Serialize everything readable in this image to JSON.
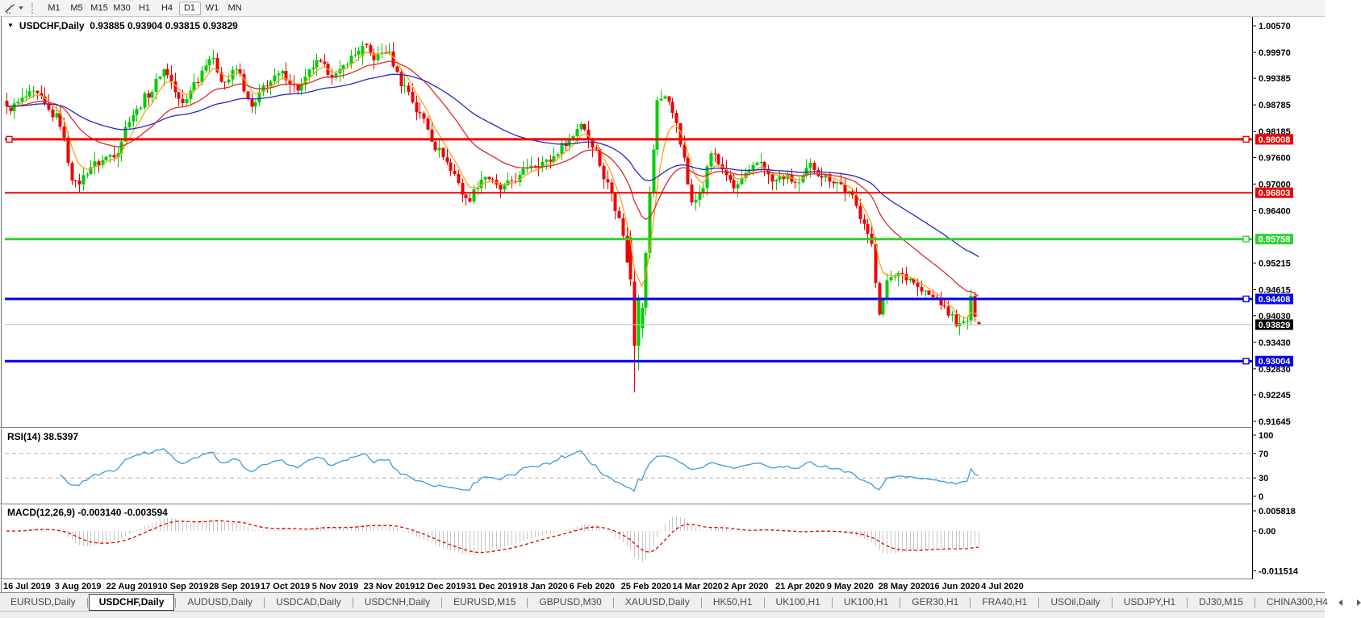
{
  "toolbar": {
    "timeframes": [
      "M1",
      "M5",
      "M15",
      "M30",
      "H1",
      "H4",
      "D1",
      "W1",
      "MN"
    ],
    "active_timeframe": "D1"
  },
  "chart": {
    "symbol_label": "USDCHF,Daily",
    "ohlc_text": "0.93885 0.93904 0.93815 0.93829",
    "dropdown_glyph": "▼"
  },
  "price_axis": {
    "ticks": [
      "1.00570",
      "0.99970",
      "0.99385",
      "0.98785",
      "0.98185",
      "0.97600",
      "0.97000",
      "0.96400",
      "0.95215",
      "0.94615",
      "0.94030",
      "0.93430",
      "0.92830",
      "0.92245",
      "0.91645"
    ]
  },
  "levels": [
    {
      "price": 0.98008,
      "label": "0.98008",
      "color": "#F00000",
      "line_width": 3,
      "handles": [
        "left",
        "right"
      ]
    },
    {
      "price": 0.96803,
      "label": "0.96803",
      "color": "#F00000",
      "line_width": 2,
      "handles": []
    },
    {
      "price": 0.95758,
      "label": "0.95758",
      "color": "#2FD32F",
      "line_width": 3,
      "handles": [
        "right"
      ]
    },
    {
      "price": 0.94408,
      "label": "0.94408",
      "color": "#0000F0",
      "line_width": 3,
      "handles": [
        "right"
      ]
    },
    {
      "price": 0.93004,
      "label": "0.93004",
      "color": "#0000F0",
      "line_width": 3,
      "handles": [
        "right"
      ]
    }
  ],
  "bid_line": {
    "price": 0.93829,
    "label": "0.93829",
    "line_color": "#C0C0C0",
    "label_bg": "#000000"
  },
  "rsi": {
    "label": "RSI(14) 38.5397",
    "period": 14,
    "value": 38.5397,
    "ticks": [
      "100",
      "70",
      "30",
      "0"
    ],
    "level_lines": [
      70,
      30
    ],
    "line_color": "#3D9AE0"
  },
  "macd": {
    "label": "MACD(12,26,9) -0.003140 -0.003594",
    "value": -0.00314,
    "signal_value": -0.003594,
    "ticks": [
      "0.005818",
      "0.00",
      "-0.011514"
    ],
    "histogram_color": "#C6C6C6",
    "signal_color": "#E00000"
  },
  "date_axis": [
    "16 Jul 2019",
    "3 Aug 2019",
    "22 Aug 2019",
    "10 Sep 2019",
    "28 Sep 2019",
    "17 Oct 2019",
    "5 Nov 2019",
    "23 Nov 2019",
    "12 Dec 2019",
    "31 Dec 2019",
    "18 Jan 2020",
    "6 Feb 2020",
    "25 Feb 2020",
    "14 Mar 2020",
    "2 Apr 2020",
    "21 Apr 2020",
    "9 May 2020",
    "28 May 2020",
    "16 Jun 2020",
    "4 Jul 2020"
  ],
  "tabs": {
    "items": [
      "EURUSD,Daily",
      "USDCHF,Daily",
      "AUDUSD,Daily",
      "USDCAD,Daily",
      "USDCNH,Daily",
      "EURUSD,M15",
      "GBPUSD,M30",
      "XAUUSD,Daily",
      "HK50,H1",
      "UK100,H1",
      "UK100,H1",
      "GER30,H1",
      "FRA40,H1",
      "USOil,Daily",
      "USDJPY,H1",
      "DJ30,M15",
      "CHINA300,H4"
    ],
    "active": "USDCHF,Daily"
  },
  "colors": {
    "candle_up": "#00CE00",
    "candle_down": "#F00000",
    "ma_fast": "#FFA018",
    "ma_mid": "#E02828",
    "ma_slow": "#2828C8",
    "axis_text": "#000000",
    "pane_bg": "#FFFFFF"
  },
  "chart_data": {
    "type": "candlestick",
    "symbol": "USDCHF",
    "timeframe": "Daily",
    "current_ohlc": {
      "open": 0.93885,
      "high": 0.93904,
      "low": 0.93815,
      "close": 0.93829
    },
    "y_axis": {
      "max": 1.0057,
      "min": 0.91645
    },
    "num_candles": 255,
    "noise_amplitude": 0.0018,
    "price_path_anchors": [
      [
        0,
        0.987
      ],
      [
        7,
        0.9903
      ],
      [
        13,
        0.9852
      ],
      [
        18,
        0.97
      ],
      [
        23,
        0.9745
      ],
      [
        28,
        0.9768
      ],
      [
        33,
        0.9858
      ],
      [
        37,
        0.9903
      ],
      [
        41,
        0.9958
      ],
      [
        46,
        0.988
      ],
      [
        49,
        0.9928
      ],
      [
        53,
        0.9985
      ],
      [
        57,
        0.993
      ],
      [
        60,
        0.9958
      ],
      [
        64,
        0.9872
      ],
      [
        68,
        0.9928
      ],
      [
        72,
        0.9948
      ],
      [
        76,
        0.9915
      ],
      [
        81,
        0.9972
      ],
      [
        86,
        0.9945
      ],
      [
        90,
        0.9985
      ],
      [
        93,
        1.0012
      ],
      [
        96,
        0.9985
      ],
      [
        99,
        1.0
      ],
      [
        104,
        0.992
      ],
      [
        108,
        0.9855
      ],
      [
        113,
        0.9775
      ],
      [
        117,
        0.9722
      ],
      [
        120,
        0.9663
      ],
      [
        125,
        0.9718
      ],
      [
        129,
        0.9688
      ],
      [
        133,
        0.971
      ],
      [
        137,
        0.9745
      ],
      [
        141,
        0.975
      ],
      [
        147,
        0.9798
      ],
      [
        150,
        0.9838
      ],
      [
        153,
        0.979
      ],
      [
        157,
        0.97
      ],
      [
        160,
        0.963
      ],
      [
        162,
        0.9528
      ],
      [
        164,
        0.9335
      ],
      [
        166,
        0.9428
      ],
      [
        168,
        0.9675
      ],
      [
        170,
        0.9885
      ],
      [
        172,
        0.9902
      ],
      [
        175,
        0.984
      ],
      [
        177,
        0.9752
      ],
      [
        179,
        0.9652
      ],
      [
        182,
        0.97
      ],
      [
        184,
        0.9772
      ],
      [
        187,
        0.9735
      ],
      [
        190,
        0.969
      ],
      [
        193,
        0.972
      ],
      [
        197,
        0.9752
      ],
      [
        200,
        0.9705
      ],
      [
        203,
        0.9716
      ],
      [
        207,
        0.97
      ],
      [
        210,
        0.9742
      ],
      [
        213,
        0.972
      ],
      [
        217,
        0.9705
      ],
      [
        220,
        0.9678
      ],
      [
        224,
        0.9618
      ],
      [
        226,
        0.9558
      ],
      [
        227,
        0.9478
      ],
      [
        228,
        0.9412
      ],
      [
        230,
        0.9478
      ],
      [
        233,
        0.95
      ],
      [
        236,
        0.9488
      ],
      [
        239,
        0.9458
      ],
      [
        243,
        0.944
      ],
      [
        246,
        0.9408
      ],
      [
        249,
        0.938
      ],
      [
        251,
        0.9392
      ],
      [
        254,
        0.93829
      ]
    ],
    "pinned_candles": [
      {
        "i": 93,
        "o": 0.999,
        "h": 1.0023,
        "l": 0.9968,
        "c": 1.0012
      },
      {
        "i": 163,
        "o": 0.958,
        "h": 0.9595,
        "l": 0.947,
        "c": 0.9485
      },
      {
        "i": 164,
        "o": 0.948,
        "h": 0.951,
        "l": 0.923,
        "c": 0.9335
      },
      {
        "i": 165,
        "o": 0.9335,
        "h": 0.945,
        "l": 0.928,
        "c": 0.944
      },
      {
        "i": 252,
        "o": 0.9392,
        "h": 0.9462,
        "l": 0.9381,
        "c": 0.9448
      },
      {
        "i": 253,
        "o": 0.9448,
        "h": 0.9456,
        "l": 0.9389,
        "c": 0.9401
      },
      {
        "i": 254,
        "o": 0.93885,
        "h": 0.93904,
        "l": 0.93815,
        "c": 0.93829
      }
    ],
    "moving_averages": [
      {
        "name": "fast",
        "period": 6,
        "color": "#FFA018"
      },
      {
        "name": "medium",
        "period": 24,
        "color": "#E02828"
      },
      {
        "name": "slow",
        "period": 58,
        "color": "#2828C8"
      }
    ],
    "indicators": [
      {
        "name": "RSI",
        "period": 14,
        "current": 38.5397
      },
      {
        "name": "MACD",
        "fast": 12,
        "slow": 26,
        "signal": 9,
        "current": -0.00314,
        "signal_current": -0.003594
      }
    ]
  }
}
